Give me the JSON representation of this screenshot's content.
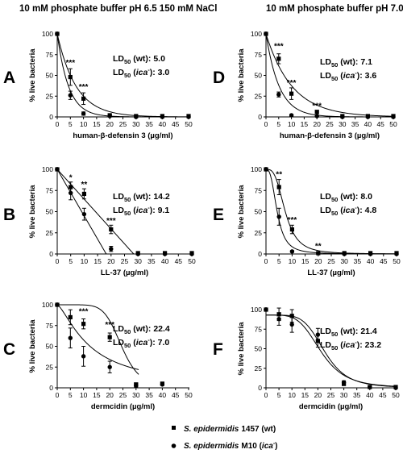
{
  "column_titles": {
    "left": "10 mM phosphate buffer pH 6.5 150 mM NaCl",
    "right": "10 mM phosphate buffer pH 7.0"
  },
  "legend": {
    "wt": {
      "species": "S. epidermidis",
      "strain": "1457 (wt)"
    },
    "ica": {
      "species": "S. epidermidis",
      "strain": "M10 (",
      "gene": "ica",
      "sup": "-",
      "close": ")"
    }
  },
  "chart_data": [
    {
      "panel": "A",
      "type": "line",
      "xlabel": "human-β-defensin 3 (µg/ml)",
      "ylabel": "% live bacteria",
      "xlim": [
        0,
        50
      ],
      "ylim": [
        0,
        100
      ],
      "xticks": [
        0,
        5,
        10,
        15,
        20,
        25,
        30,
        35,
        40,
        45,
        50
      ],
      "yticks": [
        0,
        25,
        50,
        75,
        100
      ],
      "grid": false,
      "legend": "bottom-center",
      "series": [
        {
          "key": "wt",
          "marker": "square",
          "x": [
            0,
            5,
            10,
            20,
            30,
            40,
            50
          ],
          "y": [
            100,
            48,
            22,
            2,
            1,
            1,
            1
          ],
          "err": [
            0,
            10,
            7,
            1,
            0,
            0,
            0
          ]
        },
        {
          "key": "ica",
          "marker": "circle",
          "x": [
            0,
            5,
            10,
            20,
            30,
            40,
            50
          ],
          "y": [
            100,
            26,
            4,
            1,
            0,
            0,
            0
          ],
          "err": [
            0,
            5,
            2,
            0,
            0,
            0,
            0
          ]
        }
      ],
      "fit": {
        "wt": {
          "type": "exp",
          "ld50": 5.0
        },
        "ica": {
          "type": "exp",
          "ld50": 3.0
        }
      },
      "significance": [
        {
          "x": 5,
          "y": 62,
          "text": "***"
        },
        {
          "x": 10,
          "y": 33,
          "text": "***"
        }
      ],
      "ld50": {
        "wt": "5.0",
        "ica": "3.0"
      }
    },
    {
      "panel": "B",
      "type": "line",
      "xlabel": "LL-37 (µg/ml)",
      "ylabel": "% live bacteria",
      "xlim": [
        0,
        50
      ],
      "ylim": [
        0,
        100
      ],
      "xticks": [
        0,
        5,
        10,
        15,
        20,
        25,
        30,
        35,
        40,
        45,
        50
      ],
      "yticks": [
        0,
        25,
        50,
        75,
        100
      ],
      "grid": false,
      "legend": "bottom-center",
      "series": [
        {
          "key": "wt",
          "marker": "square",
          "x": [
            0,
            5,
            10,
            20,
            30,
            40,
            50
          ],
          "y": [
            100,
            79,
            71,
            29,
            1,
            1,
            1
          ],
          "err": [
            0,
            6,
            6,
            5,
            0,
            0,
            0
          ]
        },
        {
          "key": "ica",
          "marker": "circle",
          "x": [
            0,
            5,
            10,
            20,
            30,
            40,
            50
          ],
          "y": [
            100,
            72,
            47,
            6,
            0,
            0,
            0
          ],
          "err": [
            0,
            8,
            7,
            3,
            0,
            0,
            0
          ]
        }
      ],
      "fit": {
        "wt": {
          "type": "linear",
          "ld50": 14.2,
          "x0": 0,
          "x1": 30
        },
        "ica": {
          "type": "linear",
          "ld50": 9.1,
          "x0": 0,
          "x1": 21.5
        }
      },
      "significance": [
        {
          "x": 5,
          "y": 87,
          "text": "*"
        },
        {
          "x": 10,
          "y": 79,
          "text": "**"
        },
        {
          "x": 20,
          "y": 36,
          "text": "***"
        }
      ],
      "ld50": {
        "wt": "14.2",
        "ica": "9.1"
      }
    },
    {
      "panel": "C",
      "type": "line",
      "xlabel": "dermcidin (µg/ml)",
      "ylabel": "% live bacteria",
      "xlim": [
        0,
        50
      ],
      "ylim": [
        0,
        100
      ],
      "xticks": [
        0,
        5,
        10,
        15,
        20,
        25,
        30,
        35,
        40,
        45,
        50
      ],
      "yticks": [
        0,
        25,
        50,
        75,
        100
      ],
      "grid": false,
      "legend": "bottom-center",
      "series": [
        {
          "key": "wt",
          "marker": "square",
          "x": [
            0,
            5,
            10,
            20,
            30,
            40
          ],
          "y": [
            100,
            85,
            77,
            61,
            4,
            5
          ],
          "err": [
            0,
            9,
            6,
            5,
            2,
            1
          ]
        },
        {
          "key": "ica",
          "marker": "circle",
          "x": [
            0,
            5,
            10,
            20,
            30,
            40
          ],
          "y": [
            100,
            60,
            38,
            25,
            3,
            4
          ],
          "err": [
            0,
            12,
            12,
            7,
            2,
            1
          ]
        }
      ],
      "fit": {
        "wt": {
          "type": "sigmoid",
          "ld50": 22.4,
          "top": 100,
          "bottom": 0,
          "h": 7,
          "c": 24.5,
          "xmax": 31
        },
        "ica": {
          "type": "sigmoid",
          "ld50": 7.0,
          "top": 100,
          "bottom": 0,
          "h": 1.4,
          "c": 12.5,
          "xmax": 31
        }
      },
      "significance": [
        {
          "x": 10,
          "y": 89,
          "text": "***"
        },
        {
          "x": 20,
          "y": 73,
          "text": "***"
        }
      ],
      "ld50": {
        "wt": "22.4",
        "ica": "7.0"
      }
    },
    {
      "panel": "D",
      "type": "line",
      "xlabel": "human-β-defensin 3 (µg/ml)",
      "ylabel": "% live bacteria",
      "xlim": [
        0,
        50
      ],
      "ylim": [
        0,
        100
      ],
      "xticks": [
        0,
        5,
        10,
        15,
        20,
        25,
        30,
        35,
        40,
        45,
        50
      ],
      "yticks": [
        0,
        25,
        50,
        75,
        100
      ],
      "grid": false,
      "legend": "bottom-center",
      "series": [
        {
          "key": "wt",
          "marker": "square",
          "x": [
            0,
            5,
            10,
            20,
            30,
            40,
            50
          ],
          "y": [
            100,
            70,
            28,
            6,
            1,
            1,
            1
          ],
          "err": [
            0,
            6,
            7,
            2,
            0,
            0,
            0
          ]
        },
        {
          "key": "ica",
          "marker": "circle",
          "x": [
            0,
            5,
            10,
            20,
            30,
            40,
            50
          ],
          "y": [
            100,
            27,
            2,
            1,
            0,
            0,
            0
          ],
          "err": [
            0,
            3,
            1,
            0,
            0,
            0,
            0
          ]
        }
      ],
      "fit": {
        "wt": {
          "type": "exp",
          "ld50": 7.1
        },
        "ica": {
          "type": "exp",
          "ld50": 3.6
        }
      },
      "significance": [
        {
          "x": 5,
          "y": 82,
          "text": "***"
        },
        {
          "x": 10,
          "y": 38,
          "text": "***"
        },
        {
          "x": 20,
          "y": 10,
          "text": "***"
        }
      ],
      "ld50": {
        "wt": "7.1",
        "ica": "3.6"
      }
    },
    {
      "panel": "E",
      "type": "line",
      "xlabel": "LL-37 (µg/ml)",
      "ylabel": "% live bacteria",
      "xlim": [
        0,
        50
      ],
      "ylim": [
        0,
        100
      ],
      "xticks": [
        0,
        5,
        10,
        15,
        20,
        25,
        30,
        35,
        40,
        45,
        50
      ],
      "yticks": [
        0,
        25,
        50,
        75,
        100
      ],
      "grid": false,
      "legend": "bottom-center",
      "series": [
        {
          "key": "wt",
          "marker": "square",
          "x": [
            0,
            5,
            10,
            20,
            30,
            40,
            50
          ],
          "y": [
            100,
            79,
            29,
            1,
            1,
            1,
            1
          ],
          "err": [
            0,
            9,
            5,
            0,
            0,
            0,
            0
          ]
        },
        {
          "key": "ica",
          "marker": "circle",
          "x": [
            0,
            5,
            10,
            20,
            30,
            40,
            50
          ],
          "y": [
            100,
            44,
            3,
            1,
            0,
            0,
            0
          ],
          "err": [
            0,
            10,
            1,
            0,
            0,
            0,
            0
          ]
        }
      ],
      "fit": {
        "wt": {
          "type": "sigmoid",
          "ld50": 8.0,
          "top": 100,
          "bottom": 0,
          "h": 3.2,
          "c": 7.4,
          "xmax": 50
        },
        "ica": {
          "type": "sigmoid",
          "ld50": 4.8,
          "top": 100,
          "bottom": 0,
          "h": 2.8,
          "c": 4.3,
          "xmax": 50
        }
      },
      "significance": [
        {
          "x": 5,
          "y": 91,
          "text": "**"
        },
        {
          "x": 10,
          "y": 37,
          "text": "***"
        },
        {
          "x": 20,
          "y": 6,
          "text": "**"
        }
      ],
      "ld50": {
        "wt": "8.0",
        "ica": "4.8"
      }
    },
    {
      "panel": "F",
      "type": "line",
      "xlabel": "dermcidin (µg/ml)",
      "ylabel": "% live bacteria",
      "xlim": [
        0,
        50
      ],
      "ylim": [
        0,
        100
      ],
      "xticks": [
        0,
        5,
        10,
        15,
        20,
        25,
        30,
        35,
        40,
        45,
        50
      ],
      "yticks": [
        0,
        25,
        50,
        75,
        100
      ],
      "grid": false,
      "legend": "bottom-center",
      "series": [
        {
          "key": "wt",
          "marker": "square",
          "x": [
            0,
            5,
            10,
            20,
            30,
            40,
            50
          ],
          "y": [
            100,
            94,
            92,
            60,
            5,
            1,
            1
          ],
          "err": [
            0,
            8,
            8,
            8,
            2,
            0,
            0
          ]
        },
        {
          "key": "ica",
          "marker": "circle",
          "x": [
            0,
            5,
            10,
            20,
            30,
            40,
            50
          ],
          "y": [
            100,
            88,
            81,
            68,
            7,
            1,
            0
          ],
          "err": [
            0,
            8,
            10,
            8,
            2,
            0,
            0
          ]
        }
      ],
      "fit": {
        "wt": {
          "type": "sigmoid",
          "ld50": 21.4,
          "top": 93,
          "bottom": 0,
          "h": 4.5,
          "c": 21.2,
          "xmax": 50
        },
        "ica": {
          "type": "sigmoid",
          "ld50": 23.2,
          "top": 93,
          "bottom": 0,
          "h": 5.2,
          "c": 22.6,
          "xmax": 50
        }
      },
      "significance": [],
      "ld50": {
        "wt": "21.4",
        "ica": "23.2"
      }
    }
  ]
}
